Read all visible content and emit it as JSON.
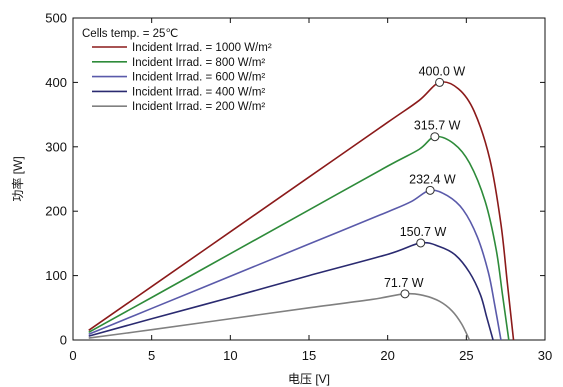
{
  "chart_data": {
    "type": "line",
    "xlabel": "电压 [V]",
    "ylabel": "功率 [W]",
    "xlim": [
      0,
      30
    ],
    "ylim": [
      0,
      500
    ],
    "x_ticks": [
      0,
      5,
      10,
      15,
      20,
      25,
      30
    ],
    "y_ticks": [
      0,
      100,
      200,
      300,
      400,
      500
    ],
    "grid": false,
    "legend_title": "Cells temp. = 25℃",
    "legend_position": "top-left",
    "series": [
      {
        "name": "Incident Irrad. = 1000 W/m²",
        "color": "#8b1a1a",
        "x": [
          1,
          5,
          10,
          15,
          20,
          22,
          23.3,
          24.5,
          25.5,
          26.5,
          27.2,
          27.6,
          28
        ],
        "y": [
          15,
          83,
          168,
          253,
          338,
          372,
          400,
          390,
          355,
          280,
          180,
          90,
          0
        ],
        "peak": {
          "x": 23.3,
          "y": 400.0,
          "label": "400.0  W"
        }
      },
      {
        "name": "Incident Irrad. = 800 W/m²",
        "color": "#2e8b3a",
        "x": [
          1,
          5,
          10,
          15,
          20,
          22,
          23.0,
          24.2,
          25.2,
          26.2,
          26.9,
          27.3,
          27.7
        ],
        "y": [
          12,
          66,
          134,
          202,
          270,
          296,
          315.7,
          305,
          275,
          215,
          140,
          70,
          0
        ],
        "peak": {
          "x": 23.0,
          "y": 315.7,
          "label": "315.7  W"
        }
      },
      {
        "name": "Incident Irrad. = 600 W/m²",
        "color": "#5a5aaa",
        "x": [
          1,
          5,
          10,
          15,
          20,
          21.5,
          22.7,
          23.8,
          24.8,
          25.7,
          26.4,
          26.8,
          27.2
        ],
        "y": [
          9,
          49,
          99,
          149,
          199,
          215,
          232.4,
          224,
          202,
          160,
          105,
          55,
          0
        ],
        "peak": {
          "x": 22.7,
          "y": 232.4,
          "label": "232.4  W"
        }
      },
      {
        "name": "Incident Irrad. = 400 W/m²",
        "color": "#2a2a70",
        "x": [
          1,
          5,
          10,
          15,
          20,
          22.1,
          23.3,
          24.3,
          25.2,
          25.9,
          26.3,
          26.7
        ],
        "y": [
          6,
          33,
          66,
          100,
          133,
          150.7,
          145,
          132,
          105,
          70,
          35,
          0
        ],
        "peak": {
          "x": 22.1,
          "y": 150.7,
          "label": "150.7  W"
        }
      },
      {
        "name": "Incident Irrad. = 200 W/m²",
        "color": "#808080",
        "x": [
          1,
          5,
          10,
          15,
          19,
          21.1,
          22.3,
          23.3,
          24.1,
          24.7,
          25.2
        ],
        "y": [
          3,
          16,
          33,
          50,
          63,
          71.7,
          69,
          60,
          45,
          25,
          0
        ],
        "peak": {
          "x": 21.1,
          "y": 71.7,
          "label": "71.7  W"
        }
      }
    ]
  }
}
